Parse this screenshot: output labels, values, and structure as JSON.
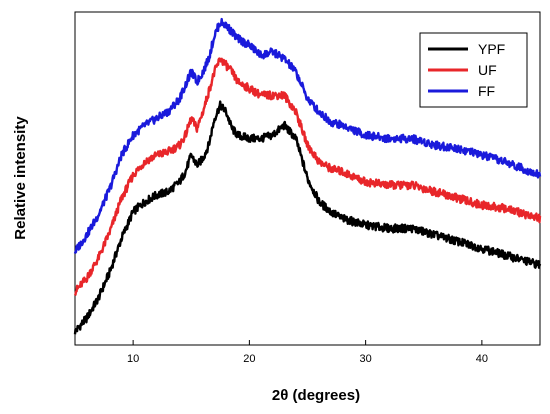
{
  "chart_data": {
    "type": "line",
    "title": "",
    "xlabel": "2θ (degrees)",
    "ylabel": "Relative intensity",
    "xlim": [
      5,
      45
    ],
    "ylim": [
      0,
      100
    ],
    "xticks": [
      10,
      20,
      30,
      40
    ],
    "yticks_visible": false,
    "grid": false,
    "legend_position": "top-right",
    "series": [
      {
        "name": "YPF",
        "color": "#000000",
        "x": [
          5,
          6,
          7,
          8,
          9,
          10,
          11,
          12,
          13,
          14,
          14.5,
          15,
          15.5,
          16,
          16.5,
          17,
          17.5,
          18,
          18.5,
          19,
          20,
          21,
          22,
          23,
          24,
          25,
          26,
          27,
          28,
          30,
          32,
          34,
          36,
          38,
          40,
          42,
          45
        ],
        "y": [
          4,
          8,
          14,
          22,
          32,
          40,
          43,
          45,
          46,
          49,
          52,
          57,
          54,
          56,
          60,
          68,
          72,
          70,
          65,
          63,
          62,
          62,
          63,
          66,
          62,
          50,
          43,
          40,
          38,
          36,
          35,
          35,
          33,
          31,
          29,
          27,
          24
        ]
      },
      {
        "name": "UF",
        "color": "#e8262a",
        "x": [
          5,
          6,
          7,
          8,
          9,
          10,
          11,
          12,
          13,
          14,
          14.5,
          15,
          15.5,
          16,
          16.5,
          17,
          17.5,
          18,
          18.5,
          19,
          20,
          21,
          22,
          23,
          24,
          25,
          26,
          27,
          28,
          30,
          32,
          34,
          36,
          38,
          40,
          42,
          45
        ],
        "y": [
          16,
          20,
          26,
          34,
          44,
          51,
          55,
          57,
          58,
          60,
          63,
          68,
          65,
          70,
          76,
          82,
          86,
          84,
          82,
          79,
          77,
          75,
          75,
          75,
          70,
          60,
          55,
          53,
          52,
          49,
          48,
          48,
          46,
          44,
          42,
          41,
          38
        ]
      },
      {
        "name": "FF",
        "color": "#1a1adb",
        "x": [
          5,
          6,
          7,
          8,
          9,
          10,
          11,
          12,
          13,
          14,
          14.5,
          15,
          15.5,
          16,
          16.5,
          17,
          17.5,
          18,
          18.5,
          19,
          20,
          21,
          22,
          23,
          24,
          25,
          26,
          27,
          28,
          30,
          32,
          34,
          36,
          38,
          40,
          42,
          45
        ],
        "y": [
          28,
          33,
          39,
          47,
          57,
          63,
          66,
          68,
          70,
          74,
          78,
          82,
          79,
          82,
          86,
          93,
          97,
          96,
          94,
          92,
          90,
          87,
          88,
          86,
          82,
          74,
          70,
          67,
          66,
          63,
          62,
          62,
          60,
          59,
          57,
          55,
          51
        ]
      }
    ]
  }
}
